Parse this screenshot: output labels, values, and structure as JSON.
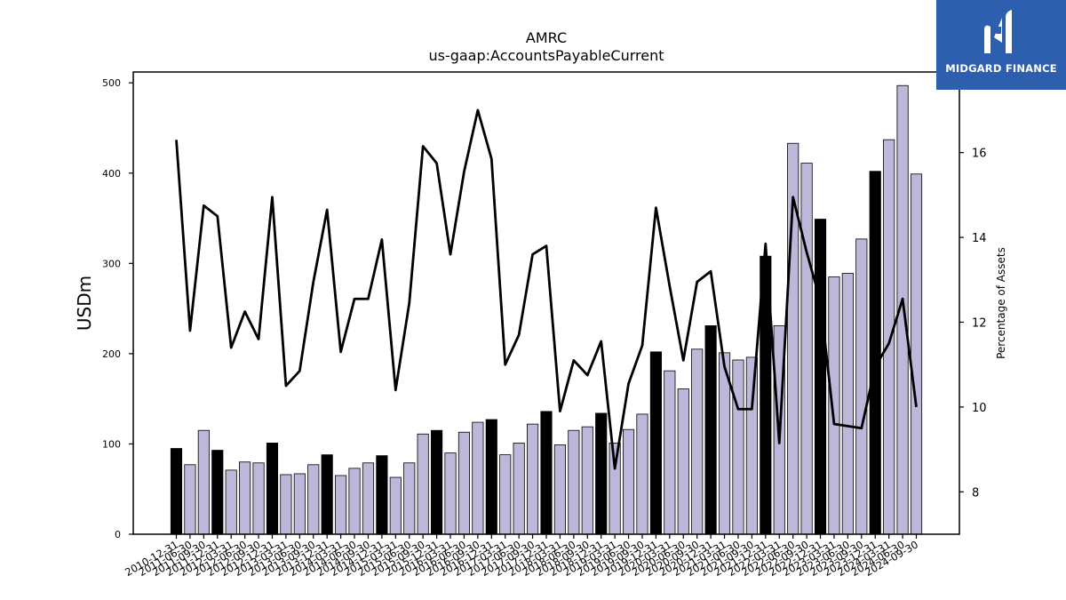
{
  "chart_data": {
    "type": "bar+line",
    "title": "AMRC",
    "subtitle": "us-gaap:AccountsPayableCurrent",
    "ylabel": "USDm",
    "y2label": "Percentage of Assets",
    "ylim": [
      0,
      512
    ],
    "y2lim": [
      7.0,
      17.9
    ],
    "yticks": [
      0,
      100,
      200,
      300,
      400,
      500
    ],
    "y2ticks": [
      8,
      10,
      12,
      14,
      16
    ],
    "categories": [
      "2010-12-31",
      "2011-06-30",
      "2011-09-30",
      "2011-12-31",
      "2012-03-31",
      "2012-06-30",
      "2012-09-30",
      "2012-12-31",
      "2013-03-31",
      "2013-06-30",
      "2013-09-30",
      "2013-12-31",
      "2014-03-31",
      "2014-06-30",
      "2014-09-30",
      "2014-12-31",
      "2015-03-31",
      "2015-06-30",
      "2015-09-30",
      "2015-12-31",
      "2016-03-31",
      "2016-06-30",
      "2016-09-30",
      "2016-12-31",
      "2017-03-31",
      "2017-06-30",
      "2017-09-30",
      "2017-12-31",
      "2018-03-31",
      "2018-06-30",
      "2018-09-30",
      "2018-12-31",
      "2019-03-31",
      "2019-06-30",
      "2019-09-30",
      "2019-12-31",
      "2020-03-31",
      "2020-06-30",
      "2020-09-30",
      "2020-12-31",
      "2021-03-31",
      "2021-06-30",
      "2021-09-30",
      "2021-12-31",
      "2022-03-31",
      "2022-06-30",
      "2022-09-30",
      "2022-12-31",
      "2023-03-31",
      "2023-06-30",
      "2023-09-30",
      "2023-12-31",
      "2024-03-31",
      "2024-06-30",
      "2024-09-30"
    ],
    "series": [
      {
        "kind": "bar",
        "values": [
          95,
          77,
          115,
          93,
          71,
          80,
          79,
          101,
          66,
          67,
          77,
          88,
          65,
          73,
          79,
          87,
          63,
          79,
          111,
          115,
          90,
          113,
          124,
          127,
          88,
          101,
          122,
          136,
          99,
          115,
          119,
          134,
          101,
          116,
          133,
          202,
          181,
          161,
          205,
          231,
          201,
          193,
          196,
          308,
          231,
          433,
          411,
          349,
          285,
          289,
          327,
          402,
          437,
          497,
          399
        ],
        "highlight": [
          true,
          false,
          false,
          true,
          false,
          false,
          false,
          true,
          false,
          false,
          false,
          true,
          false,
          false,
          false,
          true,
          false,
          false,
          false,
          true,
          false,
          false,
          false,
          true,
          false,
          false,
          false,
          true,
          false,
          false,
          false,
          true,
          false,
          false,
          false,
          true,
          false,
          false,
          false,
          true,
          false,
          false,
          false,
          true,
          false,
          false,
          false,
          true,
          false,
          false,
          false,
          true,
          false,
          false,
          false
        ],
        "color": "#bcb8d9",
        "highlight_color": "#000000"
      },
      {
        "kind": "line",
        "axis": "right",
        "values": [
          16.3,
          11.8,
          14.75,
          14.5,
          11.4,
          12.25,
          11.6,
          14.95,
          10.5,
          10.85,
          12.95,
          14.65,
          11.3,
          12.55,
          12.55,
          13.95,
          10.4,
          12.45,
          16.15,
          15.75,
          13.6,
          15.55,
          17.0,
          15.85,
          11.0,
          11.7,
          13.6,
          13.8,
          9.9,
          11.1,
          10.75,
          11.55,
          8.55,
          10.55,
          11.45,
          14.7,
          12.85,
          11.1,
          12.95,
          13.2,
          10.95,
          9.95,
          9.95,
          13.85,
          9.15,
          14.95,
          13.65,
          12.5,
          9.6,
          9.55,
          9.5,
          10.95,
          11.5,
          12.55,
          10.0
        ],
        "color": "#000000"
      }
    ],
    "grid": false,
    "legend": "none"
  },
  "watermark": {
    "brand": "MIDGARD FINANCE",
    "bg": "#2d5fae"
  }
}
